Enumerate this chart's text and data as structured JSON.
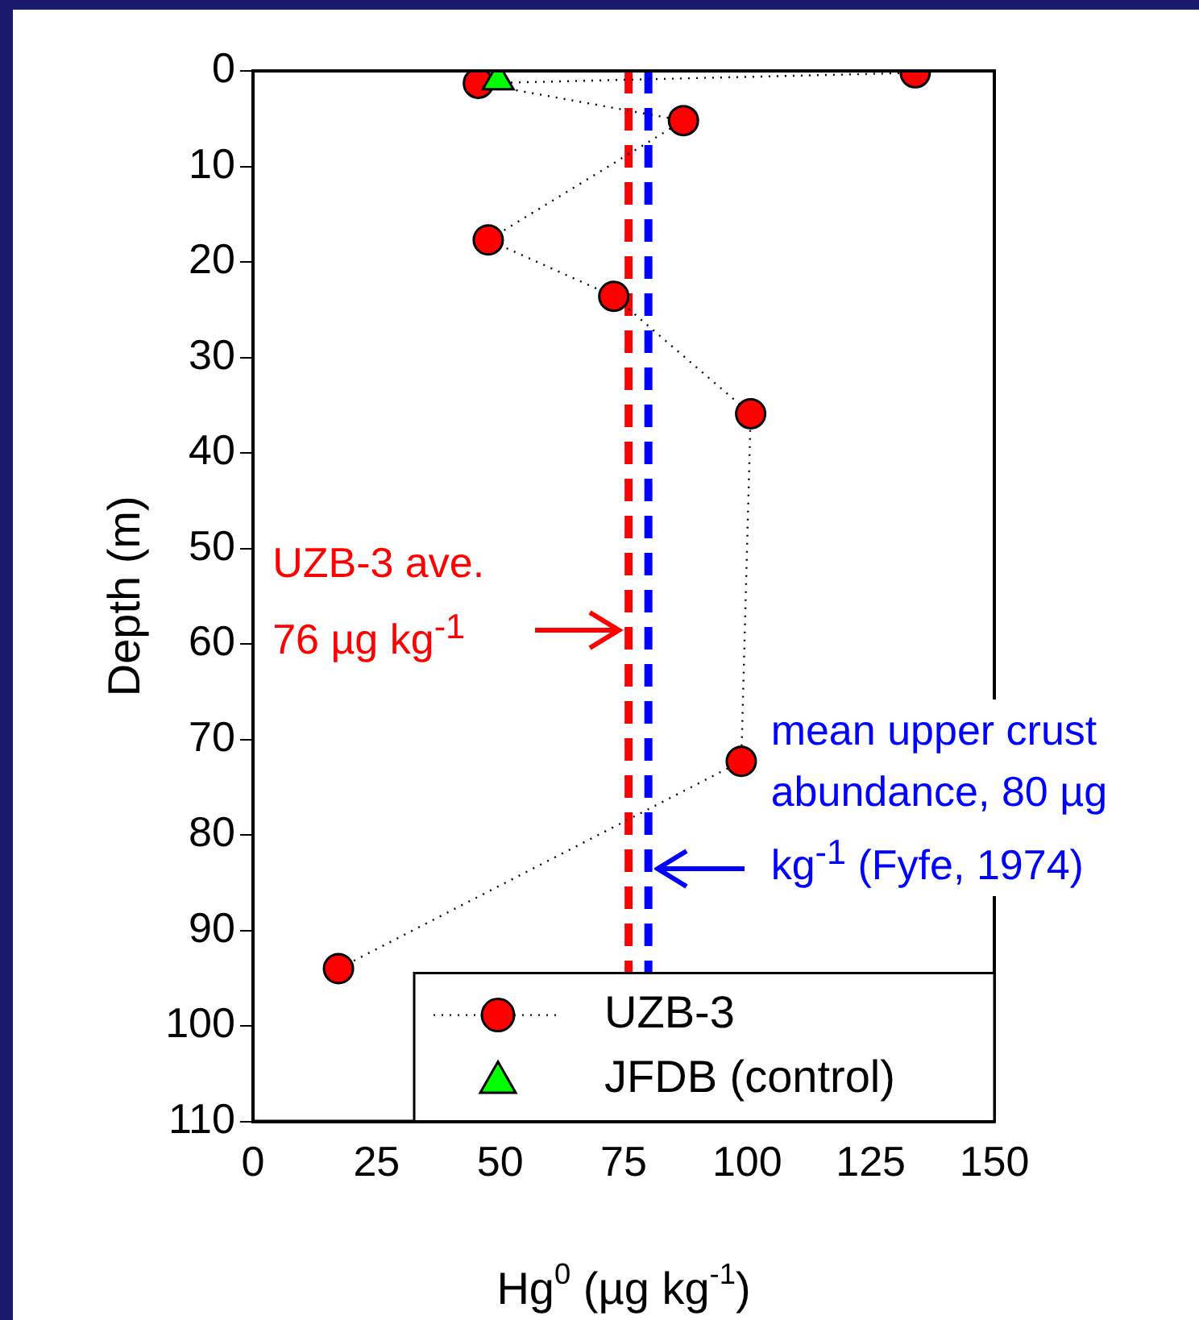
{
  "chart_data": {
    "type": "scatter",
    "xlabel": "Hg$^{0}$ (µg kg$^{-1}$)",
    "ylabel": "Depth (m)",
    "xlim": [
      0,
      150
    ],
    "xticks": [
      0,
      25,
      50,
      75,
      100,
      125,
      150
    ],
    "ylim": [
      110,
      0
    ],
    "yticks": [
      0,
      10,
      20,
      30,
      40,
      50,
      60,
      70,
      80,
      90,
      100,
      110
    ],
    "series": [
      {
        "name": "UZB-3",
        "type": "line",
        "color": "#ff0000",
        "marker": "circle",
        "line_style": "dotted",
        "x": [
          134,
          45.6,
          87.1,
          47.6,
          73,
          100.7,
          98.8,
          17.3
        ],
        "values": [
          0.2,
          1.3,
          5.2,
          17.7,
          23.6,
          35.9,
          72.3,
          94
        ]
      },
      {
        "name": "JFDB (control)",
        "type": "scatter",
        "color": "#00ff00",
        "marker": "triangle",
        "x": [
          49.6
        ],
        "values": [
          1
        ]
      }
    ],
    "ref_lines": [
      {
        "axis": "x",
        "value": 76,
        "color": "#ff0000",
        "line_style": "dashed",
        "label": "UZB-3 ave. 76 µg kg$^{-1}$"
      },
      {
        "axis": "x",
        "value": 80,
        "color": "#0000ff",
        "line_style": "dashed",
        "label": "mean upper crust abundance, 80 µg kg$^{-1}$ (Fyfe, 1974)"
      }
    ],
    "legend": "bottom right",
    "grid": false
  }
}
